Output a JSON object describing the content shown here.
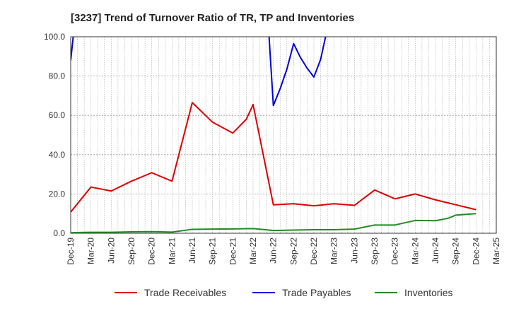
{
  "chart_data": {
    "type": "line",
    "title": "[3237]  Trend of Turnover Ratio of TR, TP and Inventories",
    "xlabel": "",
    "ylabel": "",
    "ylim": [
      0,
      100
    ],
    "yticks": [
      "0.0",
      "20.0",
      "40.0",
      "60.0",
      "80.0",
      "100.0"
    ],
    "categories": [
      "Dec-19",
      "Mar-20",
      "Jun-20",
      "Sep-20",
      "Dec-20",
      "Mar-21",
      "Jun-21",
      "Sep-21",
      "Dec-21",
      "Mar-22",
      "Jun-22",
      "Sep-22",
      "Dec-22",
      "Mar-23",
      "Jun-23",
      "Sep-23",
      "Dec-23",
      "Mar-24",
      "Jun-24",
      "Sep-24",
      "Dec-24",
      "Mar-25"
    ],
    "x": [
      "2019-12",
      "2020-01",
      "2020-02",
      "2020-03",
      "2020-04",
      "2020-05",
      "2020-06",
      "2020-07",
      "2020-08",
      "2020-09",
      "2020-10",
      "2020-11",
      "2020-12",
      "2021-01",
      "2021-02",
      "2021-03",
      "2021-04",
      "2021-05",
      "2021-06",
      "2021-07",
      "2021-08",
      "2021-09",
      "2021-10",
      "2021-11",
      "2021-12",
      "2022-01",
      "2022-02",
      "2022-03",
      "2022-04",
      "2022-05",
      "2022-06",
      "2022-07",
      "2022-08",
      "2022-09",
      "2022-10",
      "2022-11",
      "2022-12",
      "2023-01",
      "2023-02",
      "2023-03",
      "2023-04",
      "2023-05",
      "2023-06",
      "2023-07",
      "2023-08",
      "2023-09",
      "2023-10",
      "2023-11",
      "2023-12",
      "2024-01",
      "2024-02",
      "2024-03",
      "2024-04",
      "2024-05",
      "2024-06",
      "2024-07",
      "2024-08",
      "2024-09",
      "2024-10",
      "2024-11",
      "2024-12",
      "2025-01",
      "2025-02",
      "2025-03"
    ],
    "series": [
      {
        "name": "Trade Receivables",
        "color": "#dd0000",
        "points": [
          [
            "2019-12",
            10.8
          ],
          [
            "2020-03",
            23.5
          ],
          [
            "2020-06",
            21.5
          ],
          [
            "2020-09",
            26.5
          ],
          [
            "2020-12",
            30.8
          ],
          [
            "2021-03",
            26.5
          ],
          [
            "2021-06",
            66.5
          ],
          [
            "2021-09",
            56.5
          ],
          [
            "2021-12",
            51.0
          ],
          [
            "2022-02",
            58.0
          ],
          [
            "2022-03",
            65.5
          ],
          [
            "2022-06",
            14.5
          ],
          [
            "2022-09",
            15.0
          ],
          [
            "2022-12",
            14.0
          ],
          [
            "2023-03",
            15.0
          ],
          [
            "2023-06",
            14.2
          ],
          [
            "2023-09",
            22.0
          ],
          [
            "2023-12",
            17.5
          ],
          [
            "2024-03",
            20.0
          ],
          [
            "2024-06",
            17.0
          ],
          [
            "2024-09",
            14.5
          ],
          [
            "2024-12",
            12.0
          ]
        ]
      },
      {
        "name": "Trade Payables",
        "color": "#0000dd",
        "points": [
          [
            "2019-12",
            88.0
          ],
          [
            "2020-01",
            120.0
          ],
          [
            "2022-05",
            120.0
          ],
          [
            "2022-06",
            65.0
          ],
          [
            "2022-07",
            73.5
          ],
          [
            "2022-08",
            83.5
          ],
          [
            "2022-09",
            96.5
          ],
          [
            "2022-10",
            89.5
          ],
          [
            "2022-11",
            84.0
          ],
          [
            "2022-12",
            79.5
          ],
          [
            "2023-01",
            88.5
          ],
          [
            "2023-03",
            120.0
          ]
        ]
      },
      {
        "name": "Inventories",
        "color": "#228b22",
        "points": [
          [
            "2019-12",
            0.3
          ],
          [
            "2020-03",
            0.5
          ],
          [
            "2020-06",
            0.5
          ],
          [
            "2020-09",
            0.7
          ],
          [
            "2020-12",
            0.8
          ],
          [
            "2021-03",
            0.6
          ],
          [
            "2021-06",
            2.0
          ],
          [
            "2021-09",
            2.1
          ],
          [
            "2021-12",
            2.2
          ],
          [
            "2022-03",
            2.4
          ],
          [
            "2022-06",
            1.4
          ],
          [
            "2022-09",
            1.6
          ],
          [
            "2022-12",
            1.8
          ],
          [
            "2023-03",
            1.8
          ],
          [
            "2023-06",
            2.1
          ],
          [
            "2023-09",
            4.2
          ],
          [
            "2023-12",
            4.2
          ],
          [
            "2024-03",
            6.5
          ],
          [
            "2024-06",
            6.4
          ],
          [
            "2024-07",
            7.0
          ],
          [
            "2024-08",
            7.8
          ],
          [
            "2024-09",
            9.2
          ],
          [
            "2024-12",
            10.0
          ]
        ]
      }
    ],
    "grid": true,
    "legend_position": "bottom"
  }
}
